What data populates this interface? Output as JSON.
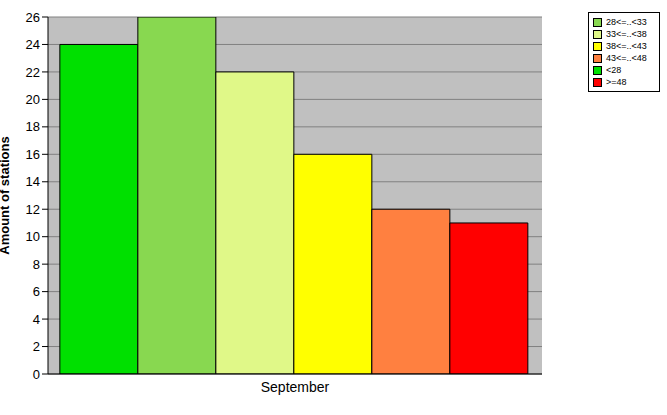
{
  "chart_data": {
    "type": "bar",
    "categories": [
      "September"
    ],
    "series": [
      {
        "name": "<28",
        "color": "#00e000",
        "values": [
          24
        ]
      },
      {
        "name": "28<=..<33",
        "color": "#88d850",
        "values": [
          26
        ]
      },
      {
        "name": "33<=..<38",
        "color": "#e0f888",
        "values": [
          22
        ]
      },
      {
        "name": "38<=..<43",
        "color": "#ffff00",
        "values": [
          16
        ]
      },
      {
        "name": "43<=..<48",
        "color": "#ff8040",
        "values": [
          12
        ]
      },
      {
        "name": ">=48",
        "color": "#ff0000",
        "values": [
          11
        ]
      }
    ],
    "y_label": "Amount of stations",
    "ylim": [
      0,
      26
    ],
    "yticks": [
      0,
      2,
      4,
      6,
      8,
      10,
      12,
      14,
      16,
      18,
      20,
      22,
      24,
      26
    ],
    "grid": true,
    "legend": "upper right"
  }
}
